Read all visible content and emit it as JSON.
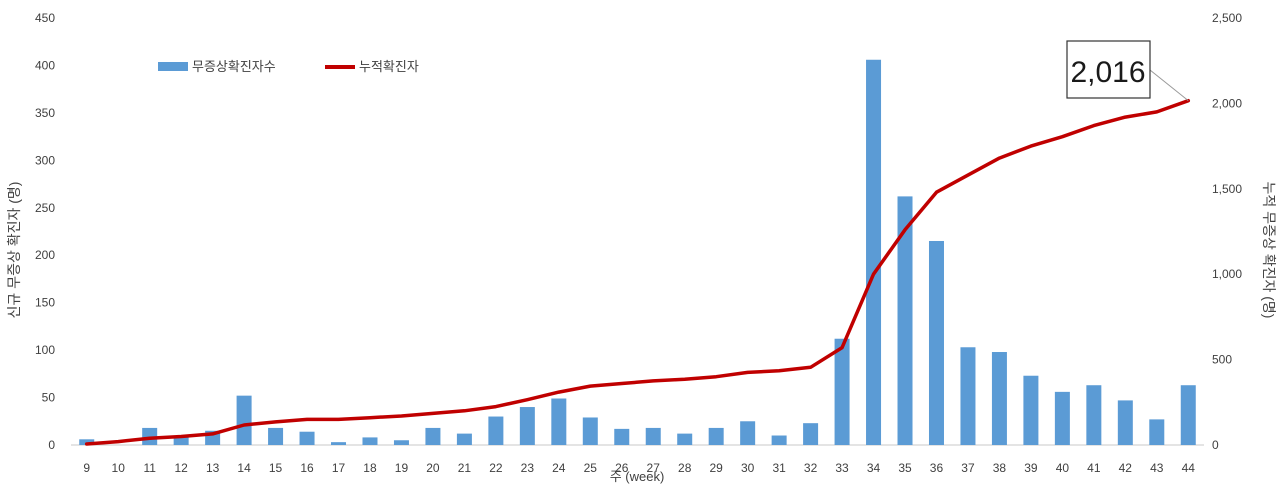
{
  "chart_data": {
    "type": "bar+line",
    "categories": [
      "9",
      "10",
      "11",
      "12",
      "13",
      "14",
      "15",
      "16",
      "17",
      "18",
      "19",
      "20",
      "21",
      "22",
      "23",
      "24",
      "25",
      "26",
      "27",
      "28",
      "29",
      "30",
      "31",
      "32",
      "33",
      "34",
      "35",
      "36",
      "37",
      "38",
      "39",
      "40",
      "41",
      "42",
      "43",
      "44"
    ],
    "series": [
      {
        "name": "무증상확진자수",
        "type": "bar",
        "axis": "left",
        "color": "#5b9bd5",
        "values": [
          6,
          0,
          18,
          10,
          15,
          52,
          18,
          14,
          3,
          8,
          5,
          18,
          12,
          30,
          40,
          49,
          29,
          17,
          18,
          12,
          18,
          25,
          10,
          23,
          112,
          406,
          262,
          215,
          103,
          98,
          73,
          56,
          63,
          47,
          27,
          63
        ]
      },
      {
        "name": "누적확진자",
        "type": "line",
        "axis": "right",
        "color": "#c00000",
        "values": [
          6,
          20,
          40,
          50,
          65,
          117,
          135,
          150,
          150,
          160,
          170,
          185,
          200,
          225,
          265,
          310,
          345,
          360,
          375,
          385,
          400,
          425,
          435,
          455,
          570,
          1000,
          1260,
          1480,
          1580,
          1680,
          1750,
          1805,
          1870,
          1920,
          1950,
          2016
        ]
      }
    ],
    "xlabel": "주 (week)",
    "ylabel_left": "신규 무증상 확진자 (명)",
    "ylabel_right": "누적 무증상 확진자 (명)",
    "ylim_left": [
      0,
      450
    ],
    "ylim_right": [
      0,
      2500
    ],
    "yticks_left": [
      "0",
      "50",
      "100",
      "150",
      "200",
      "250",
      "300",
      "350",
      "400",
      "450"
    ],
    "yticks_right": [
      "0",
      "500",
      "1,000",
      "1,500",
      "2,000",
      "2,500"
    ],
    "annotation": {
      "text": "2,016",
      "category": "44",
      "series": "누적확진자"
    },
    "legend": {
      "position": "top-left"
    },
    "grid": false
  }
}
